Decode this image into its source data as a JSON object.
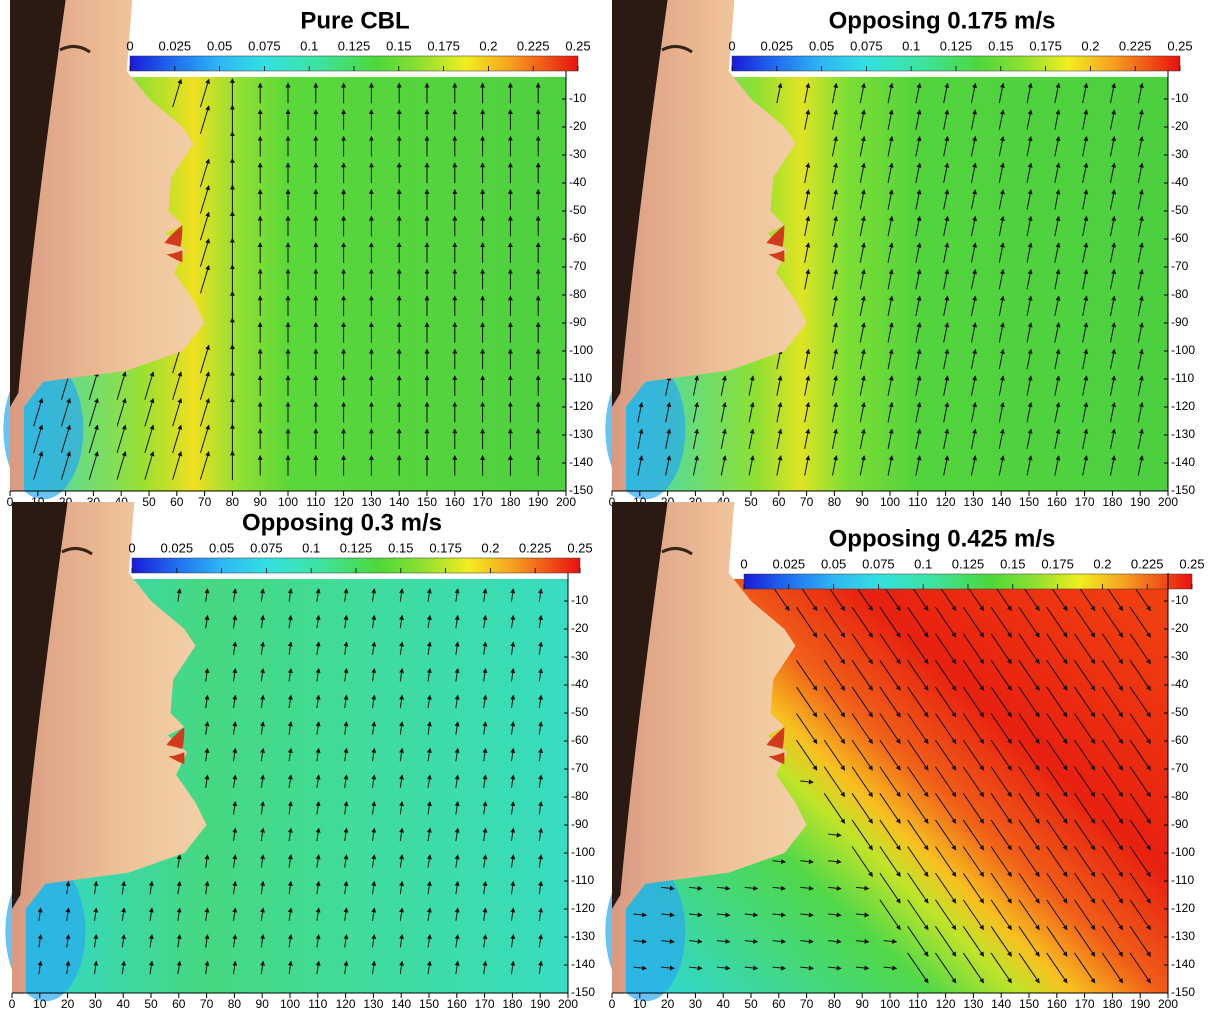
{
  "chart_data": [
    {
      "type": "contour",
      "title": "Pure CBL",
      "colorbar": {
        "lim": [
          0,
          0.25
        ],
        "ticks": [
          0,
          0.025,
          0.05,
          0.075,
          0.1,
          0.125,
          0.15,
          0.175,
          0.2,
          0.225,
          0.25
        ]
      },
      "xlim": [
        0,
        200
      ],
      "xticks": [
        0,
        10,
        20,
        30,
        40,
        50,
        60,
        70,
        80,
        90,
        100,
        110,
        120,
        130,
        140,
        150,
        160,
        170,
        180,
        190,
        200
      ],
      "ylim": [
        -150,
        0
      ],
      "yticks": [
        -10,
        -20,
        -30,
        -40,
        -50,
        -60,
        -70,
        -80,
        -90,
        -100,
        -110,
        -120,
        -130,
        -140,
        -150
      ]
    },
    {
      "type": "contour",
      "title": "Opposing 0.175 m/s",
      "colorbar": {
        "lim": [
          0,
          0.25
        ],
        "ticks": [
          0,
          0.025,
          0.05,
          0.075,
          0.1,
          0.125,
          0.15,
          0.175,
          0.2,
          0.225,
          0.25
        ]
      },
      "xlim": [
        0,
        200
      ],
      "xticks": [
        0,
        10,
        20,
        30,
        40,
        50,
        60,
        70,
        80,
        90,
        100,
        110,
        120,
        130,
        140,
        150,
        160,
        170,
        180,
        190,
        200
      ],
      "ylim": [
        -150,
        0
      ],
      "yticks": [
        -10,
        -20,
        -30,
        -40,
        -50,
        -60,
        -70,
        -80,
        -90,
        -100,
        -110,
        -120,
        -130,
        -140,
        -150
      ]
    },
    {
      "type": "contour",
      "title": "Opposing 0.3 m/s",
      "colorbar": {
        "lim": [
          0,
          0.25
        ],
        "ticks": [
          0,
          0.025,
          0.05,
          0.075,
          0.1,
          0.125,
          0.15,
          0.175,
          0.2,
          0.225,
          0.25
        ]
      },
      "xlim": [
        0,
        200
      ],
      "xticks": [
        0,
        10,
        20,
        30,
        40,
        50,
        60,
        70,
        80,
        90,
        100,
        110,
        120,
        130,
        140,
        150,
        160,
        170,
        180,
        190,
        200
      ],
      "ylim": [
        -150,
        0
      ],
      "yticks": [
        -10,
        -20,
        -30,
        -40,
        -50,
        -60,
        -70,
        -80,
        -90,
        -100,
        -110,
        -120,
        -130,
        -140,
        -150
      ]
    },
    {
      "type": "contour",
      "title": "Opposing 0.425 m/s",
      "colorbar": {
        "lim": [
          0,
          0.25
        ],
        "ticks": [
          0,
          0.025,
          0.05,
          0.075,
          0.1,
          0.125,
          0.15,
          0.175,
          0.2,
          0.225,
          0.25
        ]
      },
      "xlim": [
        0,
        200
      ],
      "xticks": [
        0,
        10,
        20,
        30,
        40,
        50,
        60,
        70,
        80,
        90,
        100,
        110,
        120,
        130,
        140,
        150,
        160,
        170,
        180,
        190,
        200
      ],
      "ylim": [
        -150,
        0
      ],
      "yticks": [
        -10,
        -20,
        -30,
        -40,
        -50,
        -60,
        -70,
        -80,
        -90,
        -100,
        -110,
        -120,
        -130,
        -140,
        -150
      ]
    }
  ]
}
